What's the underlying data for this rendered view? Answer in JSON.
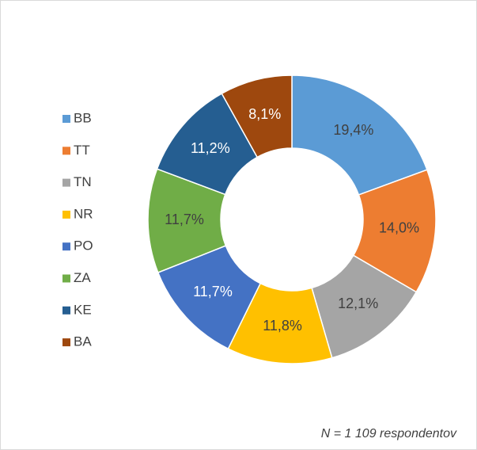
{
  "chart_data": {
    "type": "donut",
    "categories": [
      "BB",
      "TT",
      "TN",
      "NR",
      "PO",
      "ZA",
      "KE",
      "BA"
    ],
    "values": [
      19.4,
      14.0,
      12.1,
      11.8,
      11.7,
      11.7,
      11.2,
      8.1
    ],
    "value_labels": [
      "19,4%",
      "14,0%",
      "12,1%",
      "11,8%",
      "11,7%",
      "11,7%",
      "11,2%",
      "8,1%"
    ],
    "colors": [
      "#5b9bd5",
      "#ed7d31",
      "#a5a5a5",
      "#ffc000",
      "#4472c4",
      "#70ad47",
      "#255e91",
      "#9e480e"
    ],
    "legend": "left",
    "annotation": "N = 1 109 respondentov"
  }
}
